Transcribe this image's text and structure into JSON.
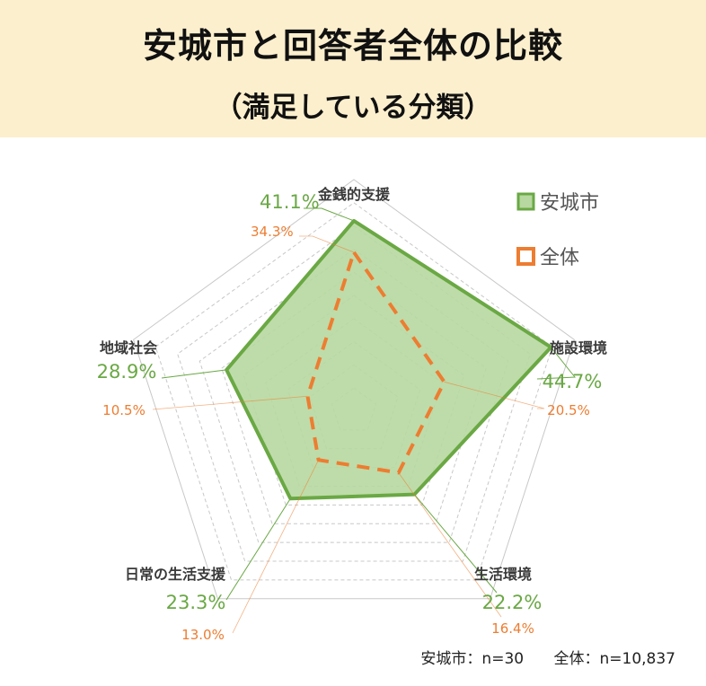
{
  "header": {
    "title": "安城市と回答者全体の比較",
    "subtitle": "（満足している分類）"
  },
  "footnote": {
    "anjo_n": "安城市：n=30",
    "total_n": "全体：n=10,837"
  },
  "colors": {
    "anjo": "#6aa844",
    "anjo_fill": "#b7d8a0",
    "total": "#ed7d31",
    "grid": "#c8c8c8",
    "label": "#3a3a3a",
    "header_bg": "#fcefcd"
  },
  "chart_data": {
    "type": "radar",
    "categories": [
      "金銭的支援",
      "施設環境",
      "生活環境",
      "日常の生活支援",
      "地域社会"
    ],
    "series": [
      {
        "name": "安城市",
        "values": [
          41.1,
          44.7,
          22.2,
          23.3,
          28.9
        ]
      },
      {
        "name": "全体",
        "values": [
          34.3,
          20.5,
          16.4,
          13.0,
          10.5
        ]
      }
    ],
    "value_labels": [
      [
        "41.1%",
        "44.7%",
        "22.2%",
        "23.3%",
        "28.9%"
      ],
      [
        "34.3%",
        "20.5%",
        "16.4%",
        "13.0%",
        "10.5%"
      ]
    ],
    "r_max": 50,
    "grid_levels": [
      5,
      10,
      15,
      20,
      25,
      30,
      35,
      40,
      45,
      50
    ],
    "legend_position": "top-right"
  }
}
